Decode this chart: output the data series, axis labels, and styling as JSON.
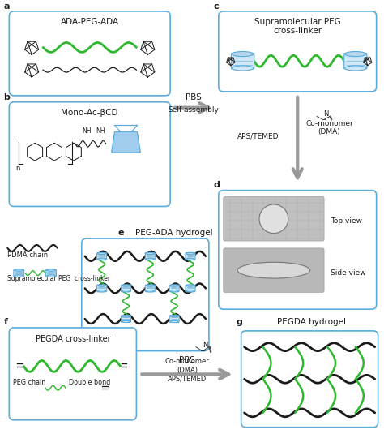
{
  "bg_color": "#ffffff",
  "border_color": "#5aacdc",
  "gray_color": "#999999",
  "black_color": "#1a1a1a",
  "green_color": "#2db82d",
  "blue_color": "#5aacdc",
  "blue_fill": "#b8d9f0",
  "gray_fill": "#b0b0b0",
  "photo_fill": "#b8b8b8",
  "label_a": "a",
  "label_b": "b",
  "label_c": "c",
  "label_d": "d",
  "label_e": "e",
  "label_f": "f",
  "label_g": "g",
  "panel_a_title": "ADA-PEG-ADA",
  "panel_b_title": "Mono-Ac-βCD",
  "panel_c_title": "Supramolecular PEG\ncross-linker",
  "panel_e_title": "PEG-ADA hydrogel",
  "panel_f_title": "PEGDA cross-linker",
  "panel_g_title": "PEGDA hydrogel",
  "pbs_text": "PBS",
  "self_assembly_text": "Self-assembly",
  "aps_temed_text": "APS/TEMED",
  "co_monomer_text": "Co-monomer\n(DMA)",
  "pbs2_text": "PBS",
  "co_monomer2_text": "Co-monomer\n(DMA)\nAPS/TEMED",
  "pdma_label": "PDMA chain",
  "supramol_label": "Supramolecular PEG  cross-linker",
  "peg_chain_label": "PEG chain",
  "double_bond_label": "Double bond",
  "top_view_label": "Top view",
  "side_view_label": "Side view",
  "figw": 4.74,
  "figh": 5.35,
  "dpi": 100
}
